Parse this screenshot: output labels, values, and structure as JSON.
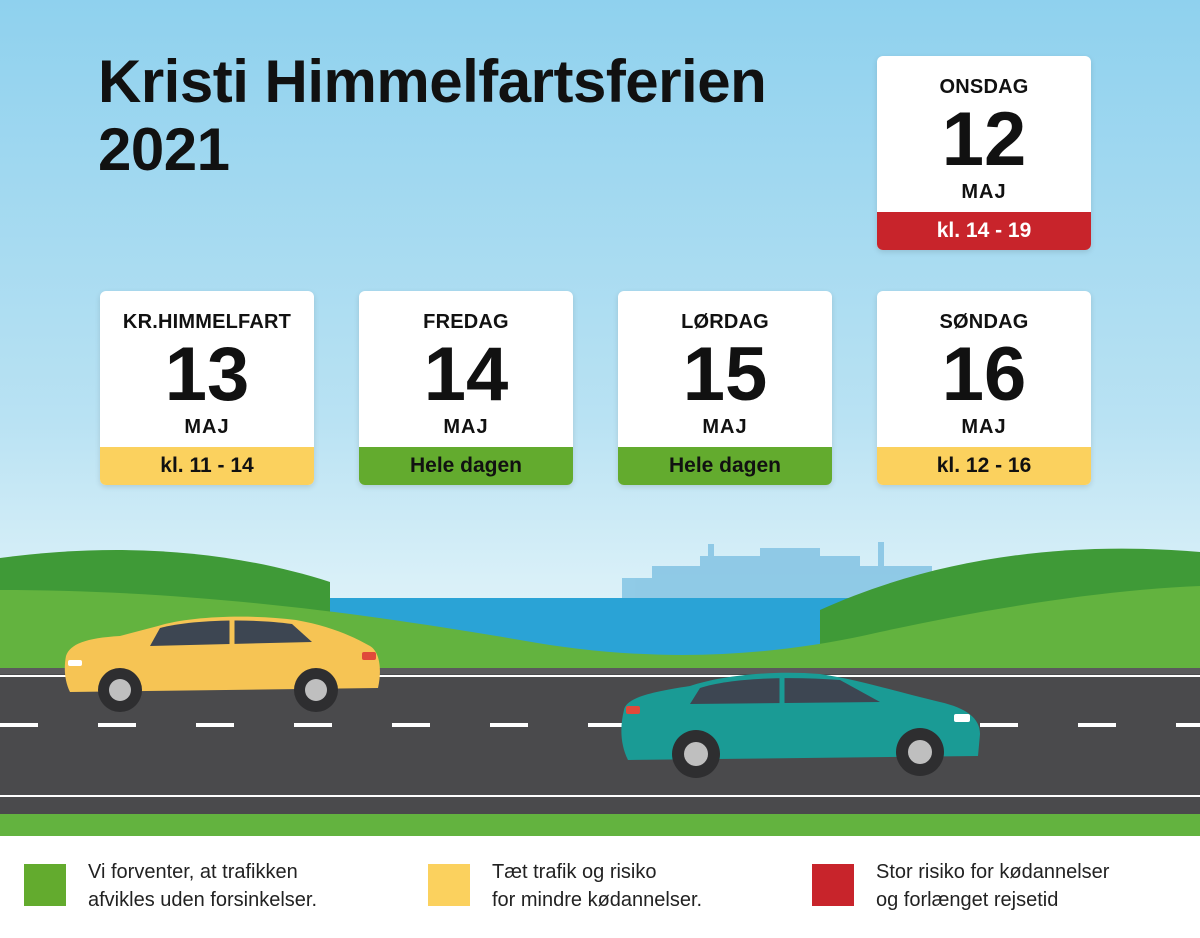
{
  "title": {
    "line1": "Kristi Himmelfartsferien",
    "line2": "2021"
  },
  "days": [
    {
      "day": "ONSDAG",
      "date": "12",
      "month": "MAJ",
      "time": "kl. 14 - 19",
      "level": "red"
    },
    {
      "day": "KR.HIMMELFART",
      "date": "13",
      "month": "MAJ",
      "time": "kl. 11 - 14",
      "level": "yellow"
    },
    {
      "day": "FREDAG",
      "date": "14",
      "month": "MAJ",
      "time": "Hele dagen",
      "level": "green"
    },
    {
      "day": "LØRDAG",
      "date": "15",
      "month": "MAJ",
      "time": "Hele dagen",
      "level": "green"
    },
    {
      "day": "SØNDAG",
      "date": "16",
      "month": "MAJ",
      "time": "kl. 12 - 16",
      "level": "yellow"
    }
  ],
  "legend": [
    {
      "color": "#63ab2e",
      "line1": "Vi forventer, at trafikken",
      "line2": "afvikles uden forsinkelser."
    },
    {
      "color": "#fbd15e",
      "line1": "Tæt trafik og risiko",
      "line2": "for mindre kødannelser."
    },
    {
      "color": "#c8242b",
      "line1": "Stor risiko for kødannelser",
      "line2": "og forlænget rejsetid"
    }
  ],
  "colors": {
    "red": "#c8242b",
    "yellow": "#fbd15e",
    "green": "#63ab2e",
    "road": "#4a4a4c",
    "grass": "#5fb13c"
  },
  "icons": {
    "car_left": "yellow-car-icon",
    "car_right": "teal-car-icon",
    "ship": "ferry-silhouette"
  }
}
